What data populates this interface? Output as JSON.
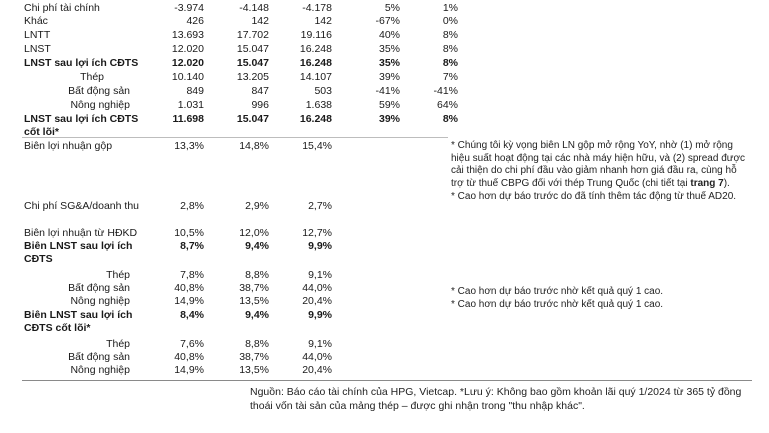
{
  "rows": [
    {
      "label": "Chi phí tài chính",
      "v": [
        "-3.974",
        "-4.148",
        "-4.178",
        "5%",
        "1%"
      ]
    },
    {
      "label": "Khác",
      "v": [
        "426",
        "142",
        "142",
        "-67%",
        "0%"
      ]
    },
    {
      "label": "LNTT",
      "v": [
        "13.693",
        "17.702",
        "19.116",
        "40%",
        "8%"
      ]
    },
    {
      "label": "LNST",
      "v": [
        "12.020",
        "15.047",
        "16.248",
        "35%",
        "8%"
      ]
    },
    {
      "label": "LNST sau lợi ích CĐTS",
      "v": [
        "12.020",
        "15.047",
        "16.248",
        "35%",
        "8%"
      ]
    },
    {
      "label": "Thép",
      "v": [
        "10.140",
        "13.205",
        "14.107",
        "39%",
        "7%"
      ]
    },
    {
      "label": "Bất động sản",
      "v": [
        "849",
        "847",
        "503",
        "-41%",
        "-41%"
      ]
    },
    {
      "label": "Nông nghiệp",
      "v": [
        "1.031",
        "996",
        "1.638",
        "59%",
        "64%"
      ]
    },
    {
      "label": "LNST sau lợi ích CĐTS cốt lõi*",
      "v": [
        "11.698",
        "15.047",
        "16.248",
        "39%",
        "8%"
      ]
    },
    {
      "label": "Biên lợi nhuận gộp",
      "v": [
        "13,3%",
        "14,8%",
        "15,4%"
      ]
    },
    {
      "label": "Chi phí SG&A/doanh thu",
      "v": [
        "2,8%",
        "2,9%",
        "2,7%"
      ]
    },
    {
      "label": "Biên lợi nhuận từ HĐKD",
      "v": [
        "10,5%",
        "12,0%",
        "12,7%"
      ]
    },
    {
      "label": "Biên LNST sau lợi ích CĐTS",
      "v": [
        "8,7%",
        "9,4%",
        "9,9%"
      ]
    },
    {
      "label": "Thép",
      "v": [
        "7,8%",
        "8,8%",
        "9,1%"
      ]
    },
    {
      "label": "Bất động sản",
      "v": [
        "40,8%",
        "38,7%",
        "44,0%"
      ]
    },
    {
      "label": "Nông nghiệp",
      "v": [
        "14,9%",
        "13,5%",
        "20,4%"
      ]
    },
    {
      "label": "Biên LNST sau lợi ích CĐTS cốt lõi*",
      "v": [
        "8,4%",
        "9,4%",
        "9,9%"
      ]
    },
    {
      "label": "Thép",
      "v": [
        "7,6%",
        "8,8%",
        "9,1%"
      ]
    },
    {
      "label": "Bất động sản",
      "v": [
        "40,8%",
        "38,7%",
        "44,0%"
      ]
    },
    {
      "label": "Nông nghiệp",
      "v": [
        "14,9%",
        "13,5%",
        "20,4%"
      ]
    }
  ],
  "notes": {
    "gross_margin_1": "* Chúng tôi kỳ vọng biên LN gộp mở rộng YoY, nhờ (1) mở rộng hiệu suất hoạt động tại các nhà máy hiện hữu, và (2) spread được cải thiện do chi phí đầu vào giảm nhanh hơn giá đầu ra, cùng hỗ trợ từ thuế CBPG đối với thép Trung Quốc (chi tiết tại ",
    "gross_margin_link": "trang 7",
    "gross_margin_end": ").",
    "gross_margin_2": "* Cao hơn dự báo trước do đã tính thêm tác động từ thuế AD20.",
    "re_note": "* Cao hơn dự báo trước nhờ kết quả quý 1 cao.",
    "agri_note": "* Cao hơn dự báo trước nhờ kết quả quý 1 cao."
  },
  "source": "Nguồn: Báo cáo tài chính của HPG, Vietcap. *Lưu ý: Không bao gồm khoản lãi quý 1/2024 từ 365 tỷ đồng thoái vốn tài sản của mảng thép – được ghi nhận trong \"thu nhập khác\"."
}
